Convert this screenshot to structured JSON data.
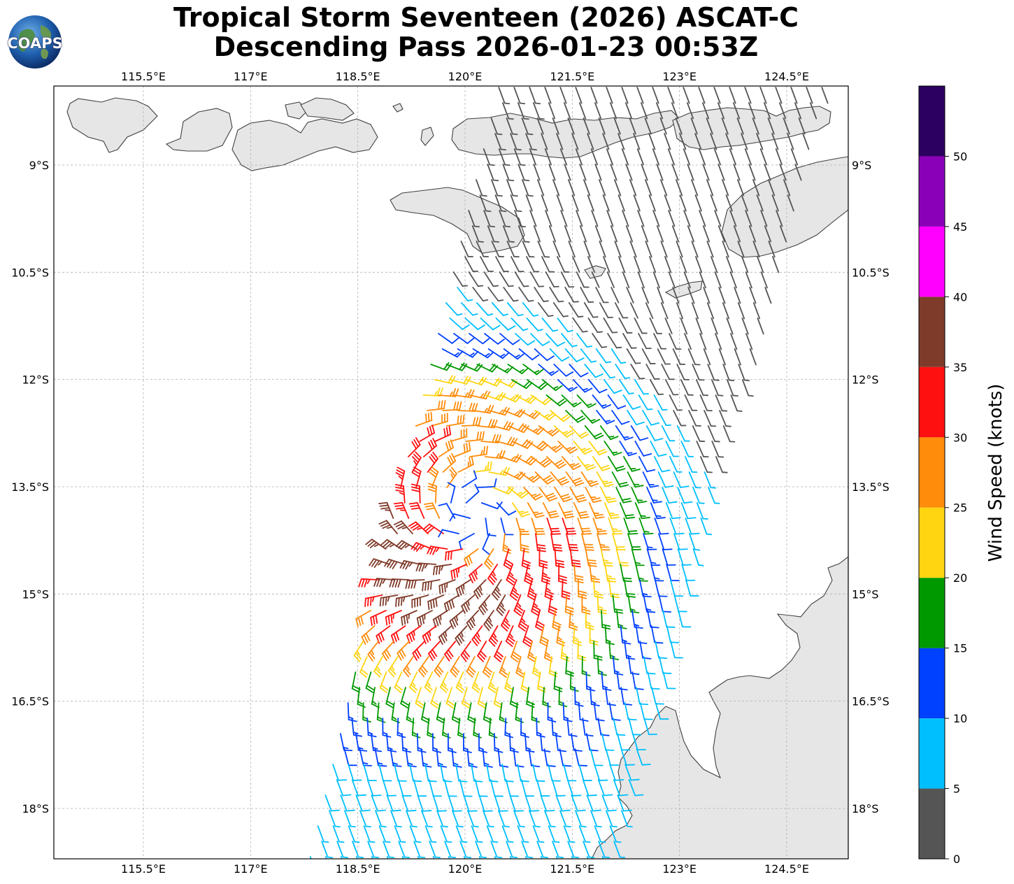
{
  "title": {
    "line1": "Tropical Storm Seventeen (2026) ASCAT-C",
    "line2": "Descending Pass 2026-01-23 00:53Z"
  },
  "logo": {
    "text": "COAPS",
    "icon": "globe-icon"
  },
  "map": {
    "lon_labels": [
      "115.5°E",
      "117°E",
      "118.5°E",
      "120°E",
      "121.5°E",
      "123°E",
      "124.5°E"
    ],
    "lat_labels": [
      "9°S",
      "10.5°S",
      "12°S",
      "13.5°S",
      "15°S",
      "16.5°S",
      "18°S"
    ],
    "grid": true,
    "land_color": "#e6e6e6",
    "coast_color": "#404040"
  },
  "colorbar": {
    "label": "Wind Speed (knots)",
    "ticks": [
      "0",
      "5",
      "10",
      "15",
      "20",
      "25",
      "30",
      "35",
      "40",
      "45",
      "50"
    ],
    "colors": [
      "#555555",
      "#00bfff",
      "#0040ff",
      "#009900",
      "#ffd511",
      "#ff8c0a",
      "#ff1010",
      "#7f3b2a",
      "#ff00ff",
      "#8a00b8",
      "#2c0060"
    ]
  },
  "storm": {
    "center_lon": 120.1,
    "center_lat": -13.9
  }
}
